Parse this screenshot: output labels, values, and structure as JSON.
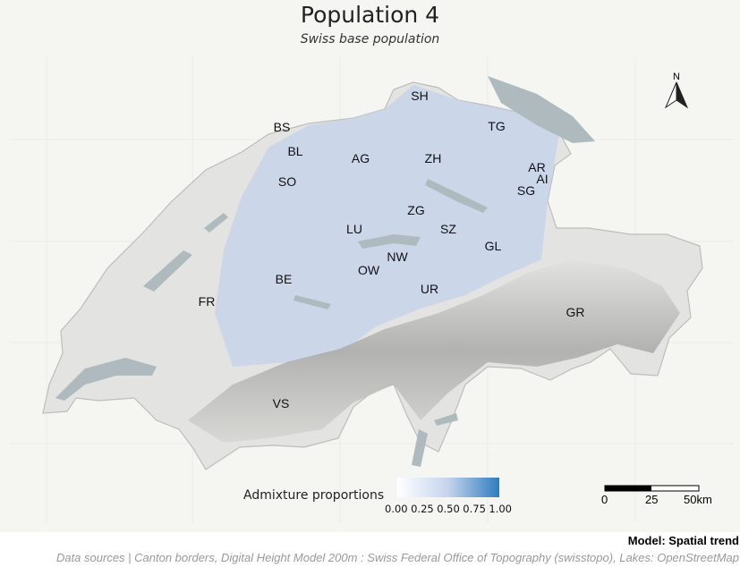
{
  "title": "Population 4",
  "subtitle": "Swiss base population",
  "north_label": "N",
  "cantons": [
    "SH",
    "BS",
    "TG",
    "BL",
    "AG",
    "ZH",
    "AR",
    "AI",
    "SO",
    "SG",
    "ZG",
    "LU",
    "SZ",
    "GL",
    "NW",
    "OW",
    "BE",
    "UR",
    "FR",
    "GR",
    "VS"
  ],
  "legend": {
    "title": "Admixture proportions",
    "ticks": [
      "0.00",
      "0.25",
      "0.50",
      "0.75",
      "1.00"
    ],
    "color_low": "#ffffff",
    "color_high": "#2e7dbf"
  },
  "scale_bar": {
    "labels": [
      "0",
      "25",
      "50km"
    ]
  },
  "model_label": "Model: Spatial trend",
  "source_label": "Data sources | Canton borders, Digital Height Model 200m : Swiss Federal Office of Topography (swisstopo), Lakes: OpenStreetMap"
}
